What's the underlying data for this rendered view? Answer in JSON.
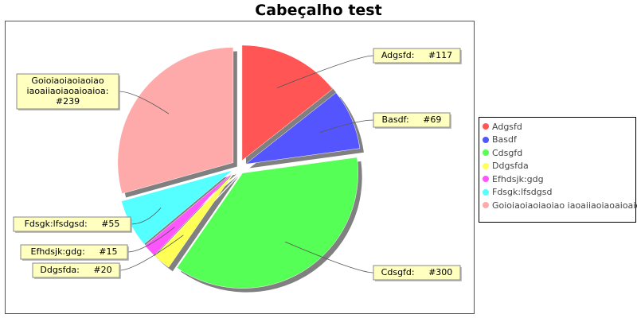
{
  "chart_data": {
    "type": "pie",
    "title": "Cabeçalho test",
    "legend_position": "right",
    "exploded": true,
    "slices": [
      {
        "name": "Adgsfd",
        "value": 117,
        "color": "#ff5555",
        "label_lines": [
          "Adgsfd:     #117"
        ]
      },
      {
        "name": "Basdf",
        "value": 69,
        "color": "#5555ff",
        "label_lines": [
          "Basdf:     #69"
        ]
      },
      {
        "name": "Cdsgfd",
        "value": 300,
        "color": "#55ff55",
        "label_lines": [
          "Cdsgfd:     #300"
        ]
      },
      {
        "name": "Ddgsfda",
        "value": 20,
        "color": "#ffff55",
        "label_lines": [
          "Ddgsfda:     #20"
        ]
      },
      {
        "name": "Efhdsjk:gdg",
        "value": 15,
        "color": "#ff55ff",
        "label_lines": [
          "Efhdsjk:gdg:     #15"
        ]
      },
      {
        "name": "Fdsgk:lfsdgsd",
        "value": 55,
        "color": "#55ffff",
        "label_lines": [
          "Fdsgk:lfsdgsd:     #55"
        ]
      },
      {
        "name": "Goioiaoiaoiaoiao iaoaiiaoiaoaioaioa",
        "value": 239,
        "color": "#ffaaaa",
        "label_lines": [
          "Goioiaoiaoiaoiao",
          "iaoaiiaoiaoaioaioa:",
          "#239"
        ]
      }
    ]
  }
}
